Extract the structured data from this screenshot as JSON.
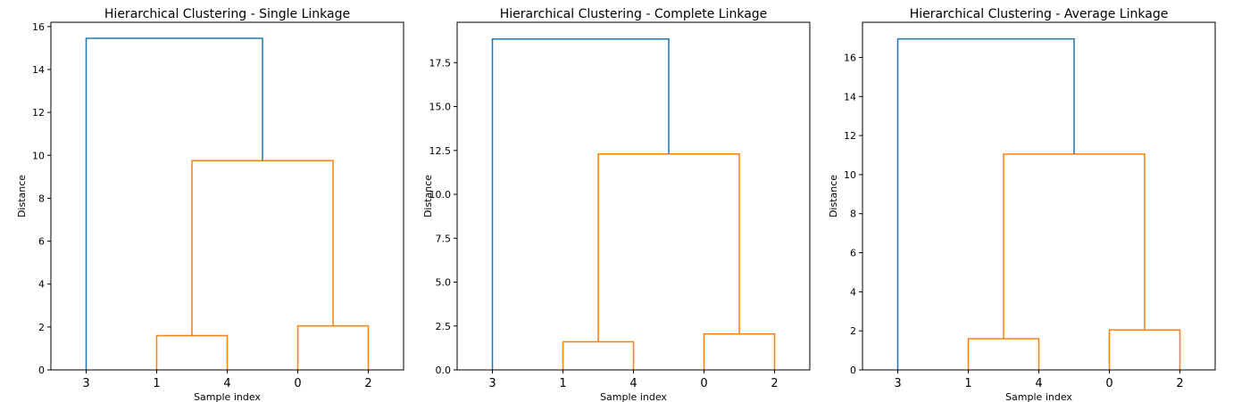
{
  "chart_data": [
    {
      "type": "dendrogram",
      "title": "Hierarchical Clustering - Single Linkage",
      "xlabel": "Sample index",
      "ylabel": "Distance",
      "leaf_order": [
        "3",
        "1",
        "4",
        "0",
        "2"
      ],
      "ylim": [
        0,
        16.2
      ],
      "yticks": [
        0,
        2,
        4,
        6,
        8,
        10,
        12,
        14,
        16
      ],
      "ytick_labels": [
        "0",
        "2",
        "4",
        "6",
        "8",
        "10",
        "12",
        "14",
        "16"
      ],
      "links": [
        {
          "left": "1",
          "right": "4",
          "height": 1.6,
          "color": "#ff7f0e"
        },
        {
          "left": "0",
          "right": "2",
          "height": 2.05,
          "color": "#ff7f0e"
        },
        {
          "left": "(1,4)",
          "right": "(0,2)",
          "height": 9.75,
          "color": "#ff7f0e"
        },
        {
          "left": "3",
          "right": "(1,4,0,2)",
          "height": 15.45,
          "color": "#1f77b4"
        }
      ]
    },
    {
      "type": "dendrogram",
      "title": "Hierarchical Clustering - Complete Linkage",
      "xlabel": "Sample index",
      "ylabel": "Distance",
      "leaf_order": [
        "3",
        "1",
        "4",
        "0",
        "2"
      ],
      "ylim": [
        0,
        19.8
      ],
      "yticks": [
        0,
        2.5,
        5,
        7.5,
        10,
        12.5,
        15,
        17.5
      ],
      "ytick_labels": [
        "0.0",
        "2.5",
        "5.0",
        "7.5",
        "10.0",
        "12.5",
        "15.0",
        "17.5"
      ],
      "links": [
        {
          "left": "1",
          "right": "4",
          "height": 1.6,
          "color": "#ff7f0e"
        },
        {
          "left": "0",
          "right": "2",
          "height": 2.05,
          "color": "#ff7f0e"
        },
        {
          "left": "(1,4)",
          "right": "(0,2)",
          "height": 12.3,
          "color": "#ff7f0e"
        },
        {
          "left": "3",
          "right": "(1,4,0,2)",
          "height": 18.85,
          "color": "#1f77b4"
        }
      ]
    },
    {
      "type": "dendrogram",
      "title": "Hierarchical Clustering - Average Linkage",
      "xlabel": "Sample index",
      "ylabel": "Distance",
      "leaf_order": [
        "3",
        "1",
        "4",
        "0",
        "2"
      ],
      "ylim": [
        0,
        17.8
      ],
      "yticks": [
        0,
        2,
        4,
        6,
        8,
        10,
        12,
        14,
        16
      ],
      "ytick_labels": [
        "0",
        "2",
        "4",
        "6",
        "8",
        "10",
        "12",
        "14",
        "16"
      ],
      "links": [
        {
          "left": "1",
          "right": "4",
          "height": 1.6,
          "color": "#ff7f0e"
        },
        {
          "left": "0",
          "right": "2",
          "height": 2.05,
          "color": "#ff7f0e"
        },
        {
          "left": "(1,4)",
          "right": "(0,2)",
          "height": 11.05,
          "color": "#ff7f0e"
        },
        {
          "left": "3",
          "right": "(1,4,0,2)",
          "height": 16.95,
          "color": "#1f77b4"
        }
      ]
    }
  ]
}
